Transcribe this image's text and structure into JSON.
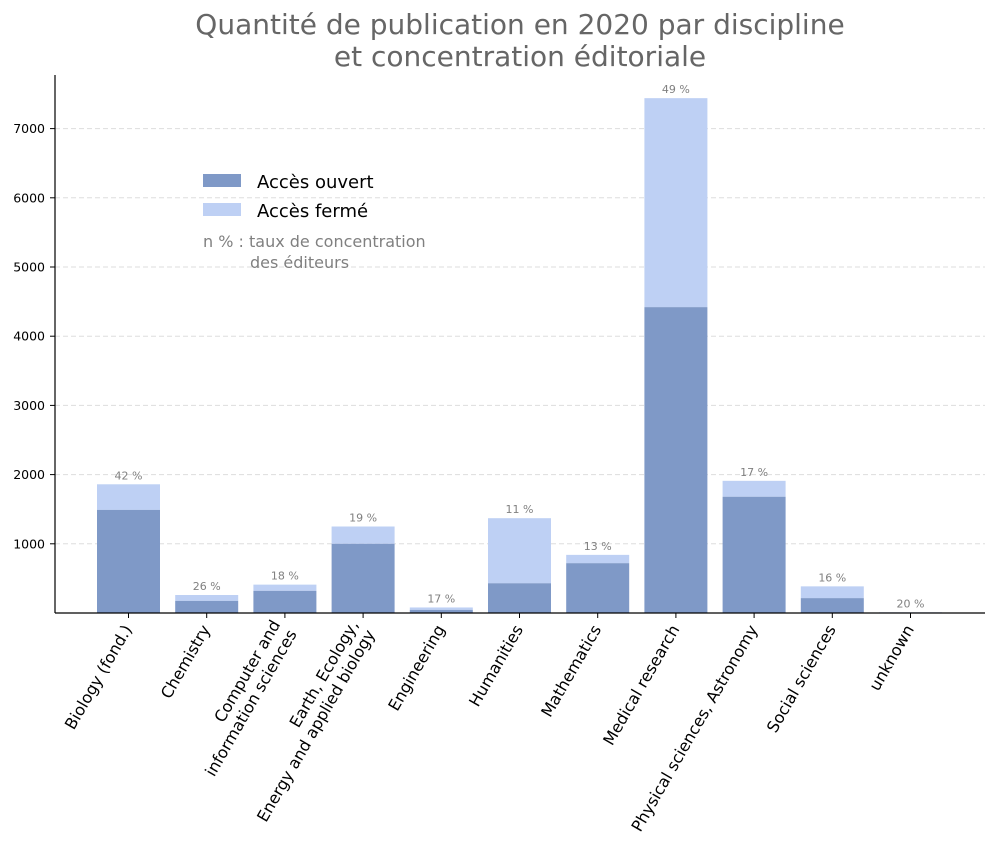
{
  "colors": {
    "open": "#7f99c7",
    "closed": "#bed0f4",
    "grid": "#dddddd",
    "axis": "#000000",
    "annotation": "#808080",
    "title": "#666666"
  },
  "chart_data": {
    "type": "bar",
    "stacked": true,
    "title_lines": [
      "Quantité de publication en 2020 par discipline",
      "et concentration éditoriale"
    ],
    "xlabel": "",
    "ylabel": "",
    "ylim": [
      0,
      7800
    ],
    "yticks": [
      "1000",
      "2000",
      "3000",
      "4000",
      "5000",
      "6000",
      "7000"
    ],
    "ytick_values": [
      1000,
      2000,
      3000,
      4000,
      5000,
      6000,
      7000
    ],
    "grid": "horizontal dashed",
    "categories": [
      [
        "Biology (fond.)"
      ],
      [
        "Chemistry"
      ],
      [
        "Computer and",
        "information sciences"
      ],
      [
        "Earth, Ecology,",
        "Energy and applied biology"
      ],
      [
        "Engineering"
      ],
      [
        "Humanities"
      ],
      [
        "Mathematics"
      ],
      [
        "Medical research"
      ],
      [
        "Physical sciences, Astronomy"
      ],
      [
        "Social sciences"
      ],
      [
        "unknown"
      ]
    ],
    "series": [
      {
        "name": "Accès ouvert",
        "values": [
          1490,
          175,
          320,
          1000,
          45,
          430,
          720,
          4420,
          1680,
          215,
          5
        ]
      },
      {
        "name": "Accès fermé",
        "values": [
          370,
          85,
          90,
          250,
          35,
          940,
          120,
          3020,
          230,
          170,
          5
        ]
      }
    ],
    "bar_labels": [
      "42 %",
      "26 %",
      "18 %",
      "19 %",
      "17 %",
      "11 %",
      "13 %",
      "49 %",
      "17 %",
      "16 %",
      "20 %"
    ],
    "legend_position": "upper-left",
    "annotation_lines": [
      "n % : taux de concentration",
      "des éditeurs"
    ]
  }
}
